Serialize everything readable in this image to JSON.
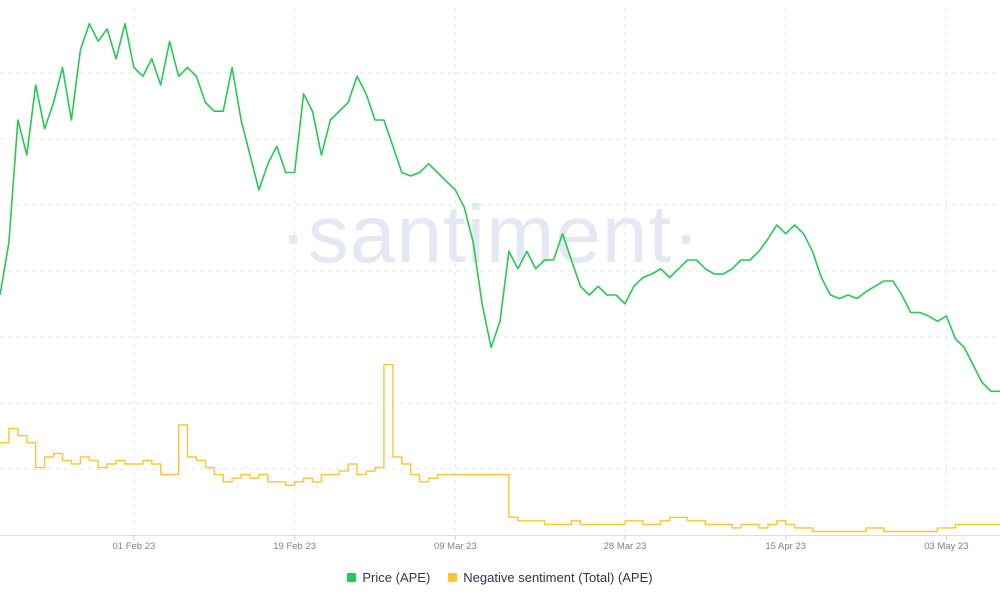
{
  "watermark": "·santiment·",
  "chart_data": {
    "type": "line",
    "x_ticks": [
      "01 Feb 23",
      "19 Feb 23",
      "09 Mar 23",
      "28 Mar 23",
      "15 Apr 23",
      "03 May 23"
    ],
    "x_tick_dates": [
      "2023-02-01",
      "2023-02-19",
      "2023-03-09",
      "2023-03-28",
      "2023-04-15",
      "2023-05-03"
    ],
    "x_range": [
      "2023-01-17",
      "2023-05-09"
    ],
    "grid": true,
    "legend_position": "bottom",
    "series": [
      {
        "name": "Price (APE)",
        "color": "#26c953",
        "axis": "left",
        "range": [
          3.6,
          6.2
        ],
        "points": [
          [
            "2023-01-17",
            4.6
          ],
          [
            "2023-01-18",
            4.9
          ],
          [
            "2023-01-19",
            5.6
          ],
          [
            "2023-01-20",
            5.4
          ],
          [
            "2023-01-21",
            5.8
          ],
          [
            "2023-01-22",
            5.55
          ],
          [
            "2023-01-23",
            5.7
          ],
          [
            "2023-01-24",
            5.9
          ],
          [
            "2023-01-25",
            5.6
          ],
          [
            "2023-01-26",
            6.0
          ],
          [
            "2023-01-27",
            6.15
          ],
          [
            "2023-01-28",
            6.05
          ],
          [
            "2023-01-29",
            6.12
          ],
          [
            "2023-01-30",
            5.95
          ],
          [
            "2023-01-31",
            6.15
          ],
          [
            "2023-02-01",
            5.9
          ],
          [
            "2023-02-02",
            5.85
          ],
          [
            "2023-02-03",
            5.95
          ],
          [
            "2023-02-04",
            5.8
          ],
          [
            "2023-02-05",
            6.05
          ],
          [
            "2023-02-06",
            5.85
          ],
          [
            "2023-02-07",
            5.9
          ],
          [
            "2023-02-08",
            5.85
          ],
          [
            "2023-02-09",
            5.7
          ],
          [
            "2023-02-10",
            5.65
          ],
          [
            "2023-02-11",
            5.65
          ],
          [
            "2023-02-12",
            5.9
          ],
          [
            "2023-02-13",
            5.6
          ],
          [
            "2023-02-14",
            5.4
          ],
          [
            "2023-02-15",
            5.2
          ],
          [
            "2023-02-16",
            5.35
          ],
          [
            "2023-02-17",
            5.45
          ],
          [
            "2023-02-18",
            5.3
          ],
          [
            "2023-02-19",
            5.3
          ],
          [
            "2023-02-20",
            5.75
          ],
          [
            "2023-02-21",
            5.65
          ],
          [
            "2023-02-22",
            5.4
          ],
          [
            "2023-02-23",
            5.6
          ],
          [
            "2023-02-24",
            5.65
          ],
          [
            "2023-02-25",
            5.7
          ],
          [
            "2023-02-26",
            5.85
          ],
          [
            "2023-02-27",
            5.75
          ],
          [
            "2023-02-28",
            5.6
          ],
          [
            "2023-03-01",
            5.6
          ],
          [
            "2023-03-02",
            5.45
          ],
          [
            "2023-03-03",
            5.3
          ],
          [
            "2023-03-04",
            5.28
          ],
          [
            "2023-03-05",
            5.3
          ],
          [
            "2023-03-06",
            5.35
          ],
          [
            "2023-03-07",
            5.3
          ],
          [
            "2023-03-08",
            5.25
          ],
          [
            "2023-03-09",
            5.2
          ],
          [
            "2023-03-10",
            5.1
          ],
          [
            "2023-03-11",
            4.9
          ],
          [
            "2023-03-12",
            4.55
          ],
          [
            "2023-03-13",
            4.3
          ],
          [
            "2023-03-14",
            4.45
          ],
          [
            "2023-03-15",
            4.85
          ],
          [
            "2023-03-16",
            4.75
          ],
          [
            "2023-03-17",
            4.85
          ],
          [
            "2023-03-18",
            4.75
          ],
          [
            "2023-03-19",
            4.8
          ],
          [
            "2023-03-20",
            4.8
          ],
          [
            "2023-03-21",
            4.95
          ],
          [
            "2023-03-22",
            4.8
          ],
          [
            "2023-03-23",
            4.65
          ],
          [
            "2023-03-24",
            4.6
          ],
          [
            "2023-03-25",
            4.65
          ],
          [
            "2023-03-26",
            4.6
          ],
          [
            "2023-03-27",
            4.6
          ],
          [
            "2023-03-28",
            4.55
          ],
          [
            "2023-03-29",
            4.65
          ],
          [
            "2023-03-30",
            4.7
          ],
          [
            "2023-03-31",
            4.72
          ],
          [
            "2023-04-01",
            4.75
          ],
          [
            "2023-04-02",
            4.7
          ],
          [
            "2023-04-03",
            4.75
          ],
          [
            "2023-04-04",
            4.8
          ],
          [
            "2023-04-05",
            4.8
          ],
          [
            "2023-04-06",
            4.75
          ],
          [
            "2023-04-07",
            4.72
          ],
          [
            "2023-04-08",
            4.72
          ],
          [
            "2023-04-09",
            4.75
          ],
          [
            "2023-04-10",
            4.8
          ],
          [
            "2023-04-11",
            4.8
          ],
          [
            "2023-04-12",
            4.85
          ],
          [
            "2023-04-13",
            4.92
          ],
          [
            "2023-04-14",
            5.0
          ],
          [
            "2023-04-15",
            4.95
          ],
          [
            "2023-04-16",
            5.0
          ],
          [
            "2023-04-17",
            4.95
          ],
          [
            "2023-04-18",
            4.85
          ],
          [
            "2023-04-19",
            4.7
          ],
          [
            "2023-04-20",
            4.6
          ],
          [
            "2023-04-21",
            4.58
          ],
          [
            "2023-04-22",
            4.6
          ],
          [
            "2023-04-23",
            4.58
          ],
          [
            "2023-04-24",
            4.62
          ],
          [
            "2023-04-25",
            4.65
          ],
          [
            "2023-04-26",
            4.68
          ],
          [
            "2023-04-27",
            4.68
          ],
          [
            "2023-04-28",
            4.6
          ],
          [
            "2023-04-29",
            4.5
          ],
          [
            "2023-04-30",
            4.5
          ],
          [
            "2023-05-01",
            4.48
          ],
          [
            "2023-05-02",
            4.45
          ],
          [
            "2023-05-03",
            4.48
          ],
          [
            "2023-05-04",
            4.35
          ],
          [
            "2023-05-05",
            4.3
          ],
          [
            "2023-05-06",
            4.2
          ],
          [
            "2023-05-07",
            4.1
          ],
          [
            "2023-05-08",
            4.05
          ],
          [
            "2023-05-09",
            4.05
          ]
        ]
      },
      {
        "name": "Negative sentiment (Total) (APE)",
        "color": "#ffc531",
        "axis": "right",
        "range": [
          0,
          100
        ],
        "points": [
          [
            "2023-01-17",
            26
          ],
          [
            "2023-01-18",
            30
          ],
          [
            "2023-01-19",
            28
          ],
          [
            "2023-01-20",
            26
          ],
          [
            "2023-01-21",
            19
          ],
          [
            "2023-01-22",
            22
          ],
          [
            "2023-01-23",
            23
          ],
          [
            "2023-01-24",
            21
          ],
          [
            "2023-01-25",
            20
          ],
          [
            "2023-01-26",
            22
          ],
          [
            "2023-01-27",
            21
          ],
          [
            "2023-01-28",
            19
          ],
          [
            "2023-01-29",
            20
          ],
          [
            "2023-01-30",
            21
          ],
          [
            "2023-01-31",
            20
          ],
          [
            "2023-02-01",
            20
          ],
          [
            "2023-02-02",
            21
          ],
          [
            "2023-02-03",
            20
          ],
          [
            "2023-02-04",
            17
          ],
          [
            "2023-02-05",
            17
          ],
          [
            "2023-02-06",
            31
          ],
          [
            "2023-02-07",
            22
          ],
          [
            "2023-02-08",
            21
          ],
          [
            "2023-02-09",
            19
          ],
          [
            "2023-02-10",
            17
          ],
          [
            "2023-02-11",
            15
          ],
          [
            "2023-02-12",
            16
          ],
          [
            "2023-02-13",
            17
          ],
          [
            "2023-02-14",
            16
          ],
          [
            "2023-02-15",
            17
          ],
          [
            "2023-02-16",
            15
          ],
          [
            "2023-02-17",
            15
          ],
          [
            "2023-02-18",
            14
          ],
          [
            "2023-02-19",
            15
          ],
          [
            "2023-02-20",
            16
          ],
          [
            "2023-02-21",
            15
          ],
          [
            "2023-02-22",
            17
          ],
          [
            "2023-02-23",
            17
          ],
          [
            "2023-02-24",
            18
          ],
          [
            "2023-02-25",
            20
          ],
          [
            "2023-02-26",
            17
          ],
          [
            "2023-02-27",
            18
          ],
          [
            "2023-02-28",
            19
          ],
          [
            "2023-03-01",
            48
          ],
          [
            "2023-03-02",
            22
          ],
          [
            "2023-03-03",
            20
          ],
          [
            "2023-03-04",
            17
          ],
          [
            "2023-03-05",
            15
          ],
          [
            "2023-03-06",
            16
          ],
          [
            "2023-03-07",
            17
          ],
          [
            "2023-03-08",
            17
          ],
          [
            "2023-03-09",
            17
          ],
          [
            "2023-03-10",
            17
          ],
          [
            "2023-03-11",
            17
          ],
          [
            "2023-03-12",
            17
          ],
          [
            "2023-03-13",
            17
          ],
          [
            "2023-03-14",
            17
          ],
          [
            "2023-03-15",
            5
          ],
          [
            "2023-03-16",
            4
          ],
          [
            "2023-03-17",
            4
          ],
          [
            "2023-03-18",
            4
          ],
          [
            "2023-03-19",
            3
          ],
          [
            "2023-03-20",
            3
          ],
          [
            "2023-03-21",
            3
          ],
          [
            "2023-03-22",
            4
          ],
          [
            "2023-03-23",
            3
          ],
          [
            "2023-03-24",
            3
          ],
          [
            "2023-03-25",
            3
          ],
          [
            "2023-03-26",
            3
          ],
          [
            "2023-03-27",
            3
          ],
          [
            "2023-03-28",
            4
          ],
          [
            "2023-03-29",
            4
          ],
          [
            "2023-03-30",
            3
          ],
          [
            "2023-03-31",
            3
          ],
          [
            "2023-04-01",
            4
          ],
          [
            "2023-04-02",
            5
          ],
          [
            "2023-04-03",
            5
          ],
          [
            "2023-04-04",
            4
          ],
          [
            "2023-04-05",
            4
          ],
          [
            "2023-04-06",
            3
          ],
          [
            "2023-04-07",
            3
          ],
          [
            "2023-04-08",
            3
          ],
          [
            "2023-04-09",
            2
          ],
          [
            "2023-04-10",
            3
          ],
          [
            "2023-04-11",
            3
          ],
          [
            "2023-04-12",
            2
          ],
          [
            "2023-04-13",
            3
          ],
          [
            "2023-04-14",
            4
          ],
          [
            "2023-04-15",
            3
          ],
          [
            "2023-04-16",
            2
          ],
          [
            "2023-04-17",
            2
          ],
          [
            "2023-04-18",
            1
          ],
          [
            "2023-04-19",
            1
          ],
          [
            "2023-04-20",
            1
          ],
          [
            "2023-04-21",
            1
          ],
          [
            "2023-04-22",
            1
          ],
          [
            "2023-04-23",
            1
          ],
          [
            "2023-04-24",
            2
          ],
          [
            "2023-04-25",
            2
          ],
          [
            "2023-04-26",
            1
          ],
          [
            "2023-04-27",
            1
          ],
          [
            "2023-04-28",
            1
          ],
          [
            "2023-04-29",
            1
          ],
          [
            "2023-04-30",
            1
          ],
          [
            "2023-05-01",
            1
          ],
          [
            "2023-05-02",
            2
          ],
          [
            "2023-05-03",
            2
          ],
          [
            "2023-05-04",
            3
          ],
          [
            "2023-05-05",
            3
          ],
          [
            "2023-05-06",
            3
          ],
          [
            "2023-05-07",
            3
          ],
          [
            "2023-05-08",
            3
          ],
          [
            "2023-05-09",
            3
          ]
        ]
      }
    ]
  }
}
